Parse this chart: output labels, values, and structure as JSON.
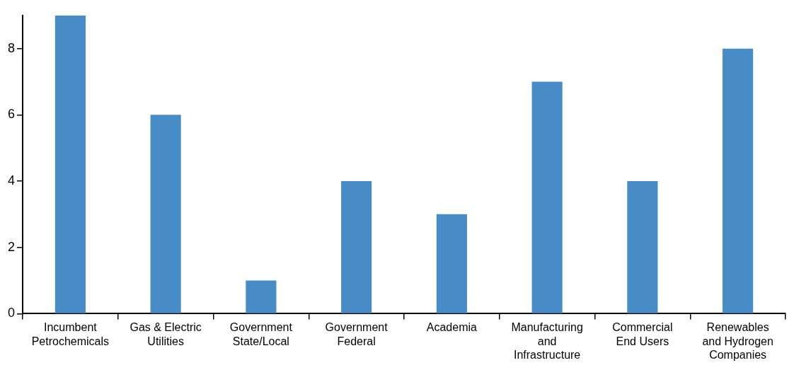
{
  "chart_data": {
    "type": "bar",
    "categories": [
      "Incumbent Petrochemicals",
      "Gas & Electric Utilities",
      "Government State/Local",
      "Government Federal",
      "Academia",
      "Manufacturing and Infrastructure",
      "Commercial End Users",
      "Renewables and Hydrogen Companies"
    ],
    "values": [
      9,
      6,
      1,
      4,
      3,
      7,
      4,
      8
    ],
    "color": "#478bc7",
    "ylim": [
      0,
      9
    ],
    "yticks": [
      0,
      2,
      4,
      6,
      8
    ],
    "grid": false,
    "legend": false
  }
}
